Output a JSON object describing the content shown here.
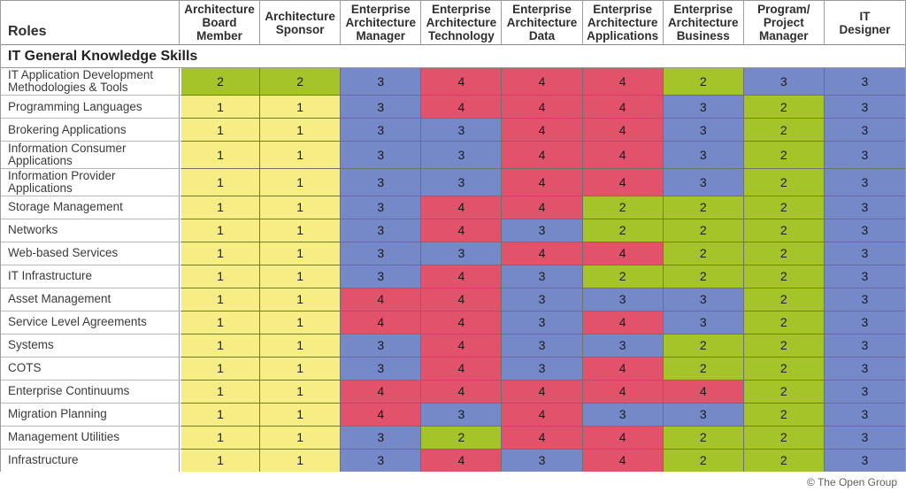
{
  "table": {
    "roles_header": "Roles",
    "section_header": "IT General Knowledge Skills",
    "columns": [
      "Architecture\nBoard\nMember",
      "Architecture\nSponsor",
      "Enterprise\nArchitecture\nManager",
      "Enterprise\nArchitecture\nTechnology",
      "Enterprise\nArchitecture\nData",
      "Enterprise\nArchitecture\nApplications",
      "Enterprise\nArchitecture\nBusiness",
      "Program/\nProject\nManager",
      "IT\nDesigner"
    ],
    "rows": [
      {
        "label": "IT Application Development Methodologies & Tools",
        "values": [
          2,
          2,
          3,
          4,
          4,
          4,
          2,
          3,
          3
        ]
      },
      {
        "label": "Programming Languages",
        "values": [
          1,
          1,
          3,
          4,
          4,
          4,
          3,
          2,
          3
        ]
      },
      {
        "label": "Brokering Applications",
        "values": [
          1,
          1,
          3,
          3,
          4,
          4,
          3,
          2,
          3
        ]
      },
      {
        "label": "Information Consumer Applications",
        "values": [
          1,
          1,
          3,
          3,
          4,
          4,
          3,
          2,
          3
        ]
      },
      {
        "label": "Information Provider Applications",
        "values": [
          1,
          1,
          3,
          3,
          4,
          4,
          3,
          2,
          3
        ]
      },
      {
        "label": "Storage Management",
        "values": [
          1,
          1,
          3,
          4,
          4,
          2,
          2,
          2,
          3
        ]
      },
      {
        "label": "Networks",
        "values": [
          1,
          1,
          3,
          4,
          3,
          2,
          2,
          2,
          3
        ]
      },
      {
        "label": "Web-based Services",
        "values": [
          1,
          1,
          3,
          3,
          4,
          4,
          2,
          2,
          3
        ]
      },
      {
        "label": "IT Infrastructure",
        "values": [
          1,
          1,
          3,
          4,
          3,
          2,
          2,
          2,
          3
        ]
      },
      {
        "label": "Asset Management",
        "values": [
          1,
          1,
          4,
          4,
          3,
          3,
          3,
          2,
          3
        ]
      },
      {
        "label": "Service Level Agreements",
        "values": [
          1,
          1,
          4,
          4,
          3,
          4,
          3,
          2,
          3
        ]
      },
      {
        "label": "Systems",
        "values": [
          1,
          1,
          3,
          4,
          3,
          3,
          2,
          2,
          3
        ]
      },
      {
        "label": "COTS",
        "values": [
          1,
          1,
          3,
          4,
          3,
          4,
          2,
          2,
          3
        ]
      },
      {
        "label": "Enterprise Continuums",
        "values": [
          1,
          1,
          4,
          4,
          4,
          4,
          4,
          2,
          3
        ]
      },
      {
        "label": "Migration Planning",
        "values": [
          1,
          1,
          4,
          3,
          4,
          3,
          3,
          2,
          3
        ]
      },
      {
        "label": "Management Utilities",
        "values": [
          1,
          1,
          3,
          2,
          4,
          4,
          2,
          2,
          3
        ]
      },
      {
        "label": "Infrastructure",
        "values": [
          1,
          1,
          3,
          4,
          3,
          4,
          2,
          2,
          3
        ]
      }
    ]
  },
  "value_colors": {
    "1": "#F6EE85",
    "2": "#A4C42A",
    "3": "#7588C7",
    "4": "#E2536B"
  },
  "footer": {
    "copyright": "© The Open Group"
  }
}
